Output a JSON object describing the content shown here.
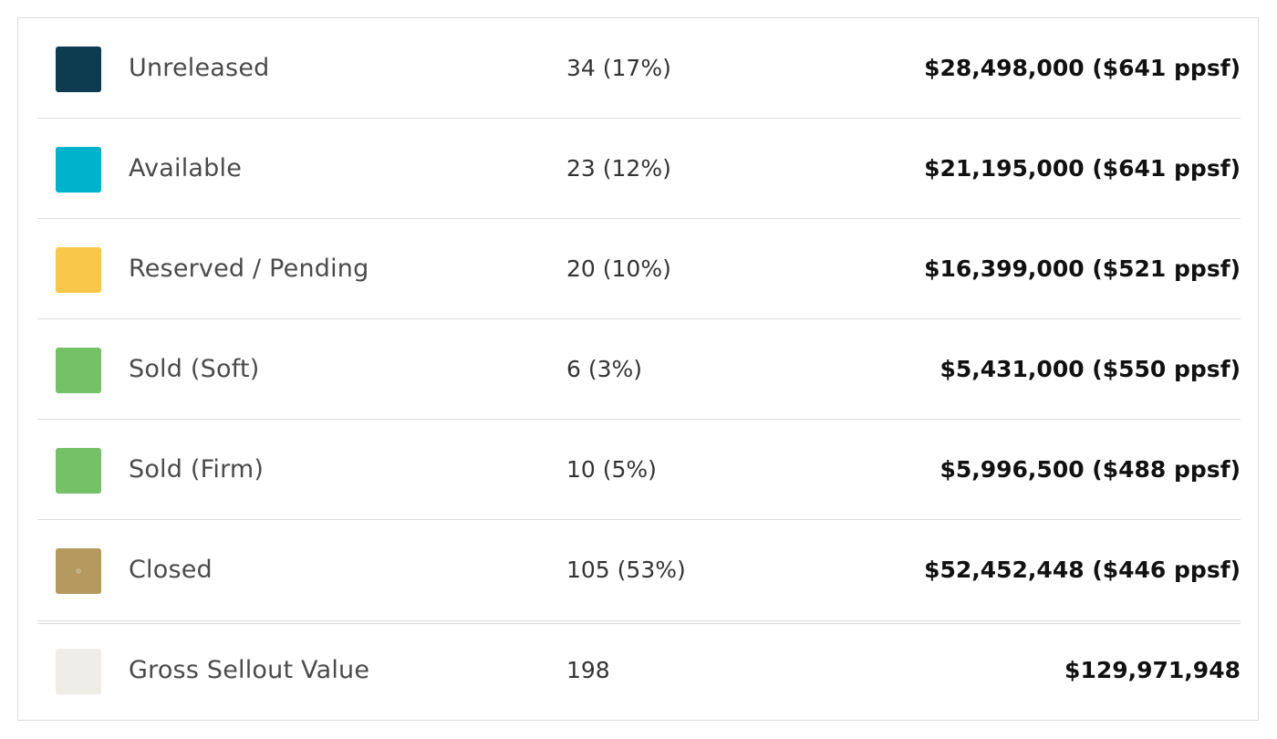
{
  "rows": [
    {
      "label": "Unreleased",
      "count": "34 (17%)",
      "value": "$28,498,000 ($641 ppsf)",
      "color": "#0d3b4f",
      "swatch_icon": "color-swatch"
    },
    {
      "label": "Available",
      "count": "23 (12%)",
      "value": "$21,195,000 ($641 ppsf)",
      "color": "#00b2cc",
      "swatch_icon": "color-swatch"
    },
    {
      "label": "Reserved / Pending",
      "count": "20 (10%)",
      "value": "$16,399,000 ($521 ppsf)",
      "color": "#f9c74a",
      "swatch_icon": "color-swatch"
    },
    {
      "label": "Sold (Soft)",
      "count": "6 (3%)",
      "value": "$5,431,000 ($550 ppsf)",
      "color": "#74c167",
      "swatch_icon": "color-swatch"
    },
    {
      "label": "Sold (Firm)",
      "count": "10 (5%)",
      "value": "$5,996,500 ($488 ppsf)",
      "color": "#74c167",
      "swatch_icon": "color-swatch"
    },
    {
      "label": "Closed",
      "count": "105 (53%)",
      "value": "$52,452,448 ($446 ppsf)",
      "color": "#b5995e",
      "swatch_icon": "color-swatch"
    }
  ],
  "total": {
    "label": "Gross Sellout Value",
    "count": "198",
    "value": "$129,971,948",
    "color": "#eeede8",
    "swatch_icon": "color-swatch"
  }
}
